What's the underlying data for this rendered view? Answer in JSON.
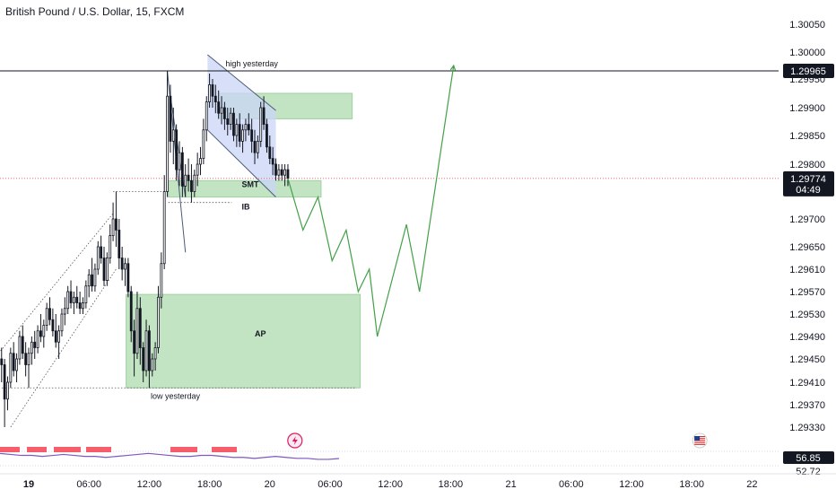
{
  "header": {
    "title": "British Pound / U.S. Dollar, 15, FXCM"
  },
  "colors": {
    "bull": "#131722",
    "bear": "#131722",
    "zone_fill": "#b7dfb7",
    "channel_fill": "#c9d6f5",
    "projection": "#43a047",
    "price_line": "#f23645",
    "osc_line": "#7e57c2",
    "osc_marker": "#f23645"
  },
  "chart_data": {
    "type": "candlestick",
    "symbol": "British Pound / U.S. Dollar",
    "timeframe": "15",
    "source": "FXCM",
    "ylim": [
      1.293,
      1.3008
    ],
    "y_ticks": [
      1.3005,
      1.3,
      1.2995,
      1.299,
      1.2985,
      1.298,
      1.297,
      1.2965,
      1.2961,
      1.2957,
      1.2953,
      1.2949,
      1.2945,
      1.2941,
      1.2937,
      1.2933
    ],
    "y_tick_labels": [
      "1.30050",
      "1.30000",
      "1.29950",
      "1.29900",
      "1.29850",
      "1.29800",
      "1.29700",
      "1.29650",
      "1.29610",
      "1.29570",
      "1.29530",
      "1.29490",
      "1.29450",
      "1.29410",
      "1.29370",
      "1.29330"
    ],
    "x_ticks": [
      {
        "label": "19",
        "t": 0,
        "bold": true
      },
      {
        "label": "06:00",
        "t": 6
      },
      {
        "label": "12:00",
        "t": 12
      },
      {
        "label": "18:00",
        "t": 18
      },
      {
        "label": "20",
        "t": 24
      },
      {
        "label": "06:00",
        "t": 30
      },
      {
        "label": "12:00",
        "t": 36
      },
      {
        "label": "18:00",
        "t": 42
      },
      {
        "label": "21",
        "t": 48
      },
      {
        "label": "06:00",
        "t": 54
      },
      {
        "label": "12:00",
        "t": 60
      },
      {
        "label": "18:00",
        "t": 66
      },
      {
        "label": "22",
        "t": 72
      }
    ],
    "price_labels": {
      "high_yesterday": {
        "value": 1.29965,
        "text": "1.29965"
      },
      "last": {
        "value": 1.29774,
        "text": "1.29774",
        "countdown": "04:49"
      }
    },
    "candles": [
      {
        "t": -2.7,
        "o": 1.2945,
        "h": 1.2947,
        "l": 1.2941,
        "c": 1.2944
      },
      {
        "t": -2.4,
        "o": 1.2944,
        "h": 1.2945,
        "l": 1.2933,
        "c": 1.2938
      },
      {
        "t": -2.1,
        "o": 1.2938,
        "h": 1.2942,
        "l": 1.2936,
        "c": 1.2941
      },
      {
        "t": -1.8,
        "o": 1.2941,
        "h": 1.2947,
        "l": 1.294,
        "c": 1.2946
      },
      {
        "t": -1.5,
        "o": 1.2946,
        "h": 1.2948,
        "l": 1.2942,
        "c": 1.2943
      },
      {
        "t": -1.2,
        "o": 1.2943,
        "h": 1.2946,
        "l": 1.2941,
        "c": 1.2945
      },
      {
        "t": -0.9,
        "o": 1.2945,
        "h": 1.295,
        "l": 1.2944,
        "c": 1.2949
      },
      {
        "t": -0.6,
        "o": 1.2949,
        "h": 1.2951,
        "l": 1.2945,
        "c": 1.2946
      },
      {
        "t": -0.3,
        "o": 1.2946,
        "h": 1.2948,
        "l": 1.2942,
        "c": 1.2944
      },
      {
        "t": 0.0,
        "o": 1.2944,
        "h": 1.2947,
        "l": 1.294,
        "c": 1.2946
      },
      {
        "t": 0.3,
        "o": 1.2946,
        "h": 1.2949,
        "l": 1.2944,
        "c": 1.2948
      },
      {
        "t": 0.6,
        "o": 1.2948,
        "h": 1.295,
        "l": 1.2945,
        "c": 1.2947
      },
      {
        "t": 0.9,
        "o": 1.2947,
        "h": 1.2951,
        "l": 1.2946,
        "c": 1.295
      },
      {
        "t": 1.2,
        "o": 1.295,
        "h": 1.2953,
        "l": 1.2948,
        "c": 1.2949
      },
      {
        "t": 1.5,
        "o": 1.2949,
        "h": 1.2952,
        "l": 1.2947,
        "c": 1.2951
      },
      {
        "t": 1.8,
        "o": 1.2951,
        "h": 1.2955,
        "l": 1.295,
        "c": 1.2954
      },
      {
        "t": 2.1,
        "o": 1.2954,
        "h": 1.2956,
        "l": 1.2951,
        "c": 1.2952
      },
      {
        "t": 2.4,
        "o": 1.2952,
        "h": 1.2954,
        "l": 1.2949,
        "c": 1.295
      },
      {
        "t": 2.7,
        "o": 1.295,
        "h": 1.2953,
        "l": 1.2947,
        "c": 1.2948
      },
      {
        "t": 3.0,
        "o": 1.2948,
        "h": 1.2951,
        "l": 1.2945,
        "c": 1.295
      },
      {
        "t": 3.3,
        "o": 1.295,
        "h": 1.2954,
        "l": 1.2949,
        "c": 1.2953
      },
      {
        "t": 3.6,
        "o": 1.2953,
        "h": 1.2956,
        "l": 1.2951,
        "c": 1.2954
      },
      {
        "t": 3.9,
        "o": 1.2954,
        "h": 1.2958,
        "l": 1.2953,
        "c": 1.2957
      },
      {
        "t": 4.2,
        "o": 1.2957,
        "h": 1.2959,
        "l": 1.2954,
        "c": 1.2955
      },
      {
        "t": 4.5,
        "o": 1.2955,
        "h": 1.2957,
        "l": 1.2953,
        "c": 1.2956
      },
      {
        "t": 4.8,
        "o": 1.2956,
        "h": 1.2958,
        "l": 1.2954,
        "c": 1.2955
      },
      {
        "t": 5.1,
        "o": 1.2955,
        "h": 1.2957,
        "l": 1.2953,
        "c": 1.2954
      },
      {
        "t": 5.4,
        "o": 1.2954,
        "h": 1.2956,
        "l": 1.2953,
        "c": 1.2955
      },
      {
        "t": 5.7,
        "o": 1.2955,
        "h": 1.2959,
        "l": 1.2954,
        "c": 1.2958
      },
      {
        "t": 6.0,
        "o": 1.2958,
        "h": 1.2961,
        "l": 1.2956,
        "c": 1.296
      },
      {
        "t": 6.3,
        "o": 1.296,
        "h": 1.2963,
        "l": 1.2957,
        "c": 1.2958
      },
      {
        "t": 6.6,
        "o": 1.2958,
        "h": 1.2962,
        "l": 1.2957,
        "c": 1.2961
      },
      {
        "t": 6.9,
        "o": 1.2961,
        "h": 1.2966,
        "l": 1.296,
        "c": 1.2965
      },
      {
        "t": 7.2,
        "o": 1.2965,
        "h": 1.2967,
        "l": 1.2962,
        "c": 1.2963
      },
      {
        "t": 7.5,
        "o": 1.2963,
        "h": 1.2965,
        "l": 1.2958,
        "c": 1.2959
      },
      {
        "t": 7.8,
        "o": 1.2959,
        "h": 1.2964,
        "l": 1.2958,
        "c": 1.2963
      },
      {
        "t": 8.1,
        "o": 1.2963,
        "h": 1.2969,
        "l": 1.2962,
        "c": 1.2967
      },
      {
        "t": 8.4,
        "o": 1.2967,
        "h": 1.2973,
        "l": 1.2966,
        "c": 1.297
      },
      {
        "t": 8.7,
        "o": 1.297,
        "h": 1.2975,
        "l": 1.2965,
        "c": 1.2968
      },
      {
        "t": 9.0,
        "o": 1.2968,
        "h": 1.297,
        "l": 1.2961,
        "c": 1.2963
      },
      {
        "t": 9.3,
        "o": 1.2963,
        "h": 1.2965,
        "l": 1.2959,
        "c": 1.2961
      },
      {
        "t": 9.6,
        "o": 1.2961,
        "h": 1.2963,
        "l": 1.2958,
        "c": 1.2962
      },
      {
        "t": 9.9,
        "o": 1.2962,
        "h": 1.2963,
        "l": 1.2956,
        "c": 1.2957
      },
      {
        "t": 10.2,
        "o": 1.2957,
        "h": 1.2958,
        "l": 1.2948,
        "c": 1.295
      },
      {
        "t": 10.5,
        "o": 1.295,
        "h": 1.2952,
        "l": 1.2942,
        "c": 1.2946
      },
      {
        "t": 10.8,
        "o": 1.2946,
        "h": 1.2957,
        "l": 1.2945,
        "c": 1.2954
      },
      {
        "t": 11.1,
        "o": 1.2954,
        "h": 1.2956,
        "l": 1.2944,
        "c": 1.2947
      },
      {
        "t": 11.4,
        "o": 1.2947,
        "h": 1.2948,
        "l": 1.2941,
        "c": 1.2943
      },
      {
        "t": 11.7,
        "o": 1.2943,
        "h": 1.2952,
        "l": 1.2942,
        "c": 1.295
      },
      {
        "t": 12.0,
        "o": 1.295,
        "h": 1.2951,
        "l": 1.294,
        "c": 1.2943
      },
      {
        "t": 12.3,
        "o": 1.2943,
        "h": 1.2946,
        "l": 1.2942,
        "c": 1.2945
      },
      {
        "t": 12.6,
        "o": 1.2945,
        "h": 1.2948,
        "l": 1.2943,
        "c": 1.2947
      },
      {
        "t": 12.9,
        "o": 1.2947,
        "h": 1.2958,
        "l": 1.2946,
        "c": 1.2956
      },
      {
        "t": 13.2,
        "o": 1.2956,
        "h": 1.2964,
        "l": 1.2954,
        "c": 1.2962
      },
      {
        "t": 13.5,
        "o": 1.2962,
        "h": 1.2978,
        "l": 1.2961,
        "c": 1.2975
      },
      {
        "t": 13.8,
        "o": 1.2975,
        "h": 1.29965,
        "l": 1.2974,
        "c": 1.2992
      },
      {
        "t": 14.1,
        "o": 1.2992,
        "h": 1.2994,
        "l": 1.2982,
        "c": 1.2984
      },
      {
        "t": 14.4,
        "o": 1.2984,
        "h": 1.299,
        "l": 1.298,
        "c": 1.2986
      },
      {
        "t": 14.7,
        "o": 1.2986,
        "h": 1.2987,
        "l": 1.2977,
        "c": 1.2979
      },
      {
        "t": 15.0,
        "o": 1.2979,
        "h": 1.2984,
        "l": 1.2976,
        "c": 1.2982
      },
      {
        "t": 15.3,
        "o": 1.2982,
        "h": 1.2983,
        "l": 1.2974,
        "c": 1.2976
      },
      {
        "t": 15.6,
        "o": 1.2976,
        "h": 1.298,
        "l": 1.2974,
        "c": 1.2978
      },
      {
        "t": 15.9,
        "o": 1.2978,
        "h": 1.2981,
        "l": 1.2975,
        "c": 1.2977
      },
      {
        "t": 16.2,
        "o": 1.2977,
        "h": 1.298,
        "l": 1.2973,
        "c": 1.2975
      },
      {
        "t": 16.5,
        "o": 1.2975,
        "h": 1.2979,
        "l": 1.2974,
        "c": 1.2978
      },
      {
        "t": 16.8,
        "o": 1.2978,
        "h": 1.2982,
        "l": 1.2976,
        "c": 1.298
      },
      {
        "t": 17.1,
        "o": 1.298,
        "h": 1.2983,
        "l": 1.2978,
        "c": 1.2981
      },
      {
        "t": 17.4,
        "o": 1.2981,
        "h": 1.2988,
        "l": 1.298,
        "c": 1.2986
      },
      {
        "t": 17.7,
        "o": 1.2986,
        "h": 1.2992,
        "l": 1.2984,
        "c": 1.2991
      },
      {
        "t": 18.0,
        "o": 1.2991,
        "h": 1.2996,
        "l": 1.299,
        "c": 1.2994
      },
      {
        "t": 18.3,
        "o": 1.2994,
        "h": 1.2995,
        "l": 1.299,
        "c": 1.2992
      },
      {
        "t": 18.6,
        "o": 1.2992,
        "h": 1.2994,
        "l": 1.2989,
        "c": 1.2991
      },
      {
        "t": 18.9,
        "o": 1.2991,
        "h": 1.2993,
        "l": 1.2988,
        "c": 1.2989
      },
      {
        "t": 19.2,
        "o": 1.2989,
        "h": 1.2992,
        "l": 1.2987,
        "c": 1.299
      },
      {
        "t": 19.5,
        "o": 1.299,
        "h": 1.2991,
        "l": 1.2986,
        "c": 1.2988
      },
      {
        "t": 19.8,
        "o": 1.2988,
        "h": 1.299,
        "l": 1.2985,
        "c": 1.2987
      },
      {
        "t": 20.1,
        "o": 1.2987,
        "h": 1.299,
        "l": 1.2986,
        "c": 1.2989
      },
      {
        "t": 20.4,
        "o": 1.2989,
        "h": 1.299,
        "l": 1.2984,
        "c": 1.2985
      },
      {
        "t": 20.7,
        "o": 1.2985,
        "h": 1.2988,
        "l": 1.2983,
        "c": 1.2987
      },
      {
        "t": 21.0,
        "o": 1.2987,
        "h": 1.2989,
        "l": 1.2983,
        "c": 1.2984
      },
      {
        "t": 21.3,
        "o": 1.2984,
        "h": 1.2987,
        "l": 1.2982,
        "c": 1.2986
      },
      {
        "t": 21.6,
        "o": 1.2986,
        "h": 1.2988,
        "l": 1.2984,
        "c": 1.2987
      },
      {
        "t": 21.9,
        "o": 1.2987,
        "h": 1.2989,
        "l": 1.2985,
        "c": 1.2986
      },
      {
        "t": 22.2,
        "o": 1.2986,
        "h": 1.2988,
        "l": 1.2982,
        "c": 1.2984
      },
      {
        "t": 22.5,
        "o": 1.2984,
        "h": 1.2986,
        "l": 1.298,
        "c": 1.2982
      },
      {
        "t": 22.8,
        "o": 1.2982,
        "h": 1.2985,
        "l": 1.2981,
        "c": 1.2984
      },
      {
        "t": 23.1,
        "o": 1.2984,
        "h": 1.2991,
        "l": 1.2983,
        "c": 1.299
      },
      {
        "t": 23.4,
        "o": 1.299,
        "h": 1.2992,
        "l": 1.2986,
        "c": 1.2987
      },
      {
        "t": 23.7,
        "o": 1.2987,
        "h": 1.2988,
        "l": 1.2982,
        "c": 1.2983
      },
      {
        "t": 24.0,
        "o": 1.2983,
        "h": 1.2985,
        "l": 1.298,
        "c": 1.2981
      },
      {
        "t": 24.3,
        "o": 1.2981,
        "h": 1.2983,
        "l": 1.2978,
        "c": 1.298
      },
      {
        "t": 24.6,
        "o": 1.298,
        "h": 1.2981,
        "l": 1.2977,
        "c": 1.2978
      },
      {
        "t": 24.9,
        "o": 1.2978,
        "h": 1.298,
        "l": 1.2977,
        "c": 1.2979
      },
      {
        "t": 25.2,
        "o": 1.2979,
        "h": 1.298,
        "l": 1.2977,
        "c": 1.2978
      },
      {
        "t": 25.5,
        "o": 1.2978,
        "h": 1.298,
        "l": 1.2976,
        "c": 1.2979
      },
      {
        "t": 25.8,
        "o": 1.2979,
        "h": 1.298,
        "l": 1.2976,
        "c": 1.29774
      }
    ],
    "zones": [
      {
        "name": "upper-supply-zone",
        "t0": 18.9,
        "t1": 32.2,
        "y_top": 1.29925,
        "y_bot": 1.2988,
        "label": ""
      },
      {
        "name": "smt-zone",
        "t0": 13.9,
        "t1": 29.1,
        "y_top": 1.2977,
        "y_bot": 1.2974,
        "label": "SMT"
      },
      {
        "name": "ap-zone",
        "t0": 9.7,
        "t1": 33.0,
        "y_top": 1.29565,
        "y_bot": 1.294,
        "label": "AP"
      }
    ],
    "reference_lines": [
      {
        "name": "high-yesterday",
        "y": 1.29965,
        "t0": 13.8,
        "t1": 32.5,
        "label": "high yesterday"
      },
      {
        "name": "low-yesterday",
        "y": 1.294,
        "t0": -3,
        "t1": 32.5,
        "label": "low yesterday"
      },
      {
        "name": "range-high",
        "y": 1.2975,
        "t0": 8.4,
        "t1": 14.0,
        "label": ""
      },
      {
        "name": "range-low",
        "y": 1.2973,
        "t0": 13.9,
        "t1": 20.2,
        "label": ""
      }
    ],
    "annotations": [
      {
        "text": "SMT",
        "t": 21.2,
        "y": 1.29758
      },
      {
        "text": "IB",
        "t": 21.2,
        "y": 1.29717
      },
      {
        "text": "AP",
        "t": 22.5,
        "y": 1.2949
      }
    ],
    "projection_path": [
      {
        "t": 25.8,
        "y": 1.29774
      },
      {
        "t": 27.3,
        "y": 1.2968
      },
      {
        "t": 28.8,
        "y": 1.2974
      },
      {
        "t": 30.2,
        "y": 1.29625
      },
      {
        "t": 31.6,
        "y": 1.2968
      },
      {
        "t": 32.8,
        "y": 1.2957
      },
      {
        "t": 33.9,
        "y": 1.2961
      },
      {
        "t": 34.7,
        "y": 1.2949
      },
      {
        "t": 37.6,
        "y": 1.2969
      },
      {
        "t": 38.9,
        "y": 1.2957
      },
      {
        "t": 42.3,
        "y": 1.29975
      }
    ],
    "channels": [
      {
        "name": "descending-channel",
        "fill": true,
        "p1": {
          "t": 17.8,
          "y": 1.29995
        },
        "p2": {
          "t": 24.6,
          "y": 1.29895
        },
        "p3": {
          "t": 17.8,
          "y": 1.2986
        },
        "p4": {
          "t": 24.6,
          "y": 1.2974
        }
      },
      {
        "name": "spike-triangle",
        "fill": true,
        "p1": {
          "t": 13.8,
          "y": 1.29965
        },
        "p2": {
          "t": 15.6,
          "y": 1.2964
        },
        "p3": {
          "t": 15.6,
          "y": 1.2974
        },
        "p4": {
          "t": 14.1,
          "y": 1.2992
        }
      },
      {
        "name": "ascending-channel",
        "fill": false,
        "p1": {
          "t": -3,
          "y": 1.2946
        },
        "p2": {
          "t": 8.4,
          "y": 1.2971
        },
        "p3": {
          "t": -1.8,
          "y": 1.2933
        },
        "p4": {
          "t": 8.7,
          "y": 1.2961
        }
      }
    ],
    "oscillator": {
      "value": "56.85",
      "secondary_value": "52.72",
      "points": [
        62,
        61,
        60,
        60,
        59,
        60,
        61,
        60,
        59,
        59,
        58,
        59,
        60,
        61,
        62,
        61,
        60,
        59,
        59,
        60,
        60,
        59,
        58,
        58,
        57,
        58,
        59,
        58,
        57,
        57,
        56,
        56,
        56.85
      ]
    },
    "event_icons": [
      {
        "name": "lightning-event-icon",
        "t": 26.5
      },
      {
        "name": "us-flag-event-icon",
        "t": 66.8
      }
    ]
  }
}
